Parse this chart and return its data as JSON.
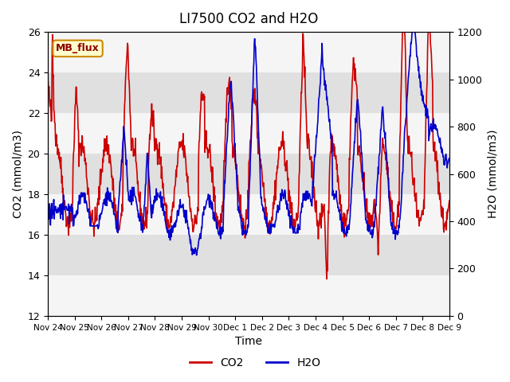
{
  "title": "LI7500 CO2 and H2O",
  "xlabel": "Time",
  "ylabel_left": "CO2 (mmol/m3)",
  "ylabel_right": "H2O (mmol/m3)",
  "ylim_left": [
    12,
    26
  ],
  "ylim_right": [
    0,
    1200
  ],
  "yticks_left": [
    12,
    14,
    16,
    18,
    20,
    22,
    24,
    26
  ],
  "yticks_right": [
    0,
    200,
    400,
    600,
    800,
    1000,
    1200
  ],
  "xtick_labels": [
    "Nov 24",
    "Nov 25",
    "Nov 26",
    "Nov 27",
    "Nov 28",
    "Nov 29",
    "Nov 30",
    "Dec 1",
    "Dec 2",
    "Dec 3",
    "Dec 4",
    "Dec 5",
    "Dec 6",
    "Dec 7",
    "Dec 8",
    "Dec 9"
  ],
  "co2_color": "#cc0000",
  "h2o_color": "#0000cc",
  "line_width": 1.2,
  "legend_labels": [
    "CO2",
    "H2O"
  ],
  "annotation_text": "MB_flux",
  "annotation_facecolor": "#ffffcc",
  "annotation_edgecolor": "#cc8800",
  "bg_band_color": "#e0e0e0",
  "bg_white_color": "#f5f5f5",
  "n_points": 960,
  "seed": 42
}
